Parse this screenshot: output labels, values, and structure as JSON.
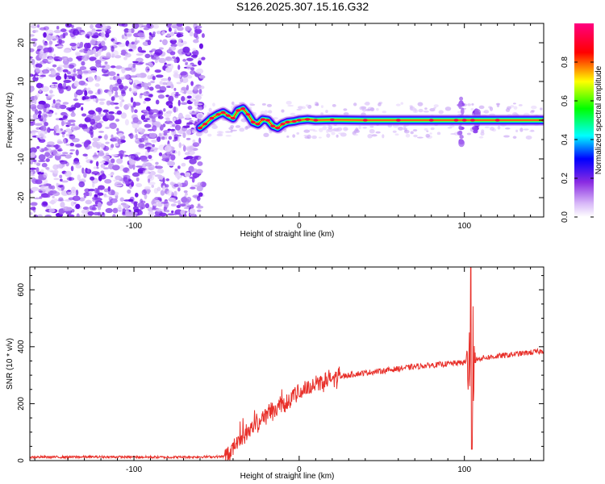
{
  "title": "S126.2025.307.15.16.G32",
  "chart_data": [
    {
      "type": "heatmap",
      "xlabel": "Height of straight line (km)",
      "ylabel": "Frequency (Hz)",
      "xlim": [
        -163,
        148
      ],
      "ylim": [
        -25,
        25
      ],
      "xticks": [
        -100,
        0,
        100
      ],
      "yticks": [
        -20,
        -10,
        0,
        10,
        20
      ],
      "noise_region_x": [
        -163,
        -60
      ],
      "signal_line": {
        "description": "narrow band near 0 Hz",
        "points": [
          [
            -60,
            -2
          ],
          [
            -57,
            -1
          ],
          [
            -53,
            0.5
          ],
          [
            -49,
            1.5
          ],
          [
            -46,
            2
          ],
          [
            -43,
            1.2
          ],
          [
            -40,
            0.5
          ],
          [
            -37,
            2.5
          ],
          [
            -34,
            3
          ],
          [
            -31,
            1.5
          ],
          [
            -28,
            -0.5
          ],
          [
            -25,
            -1
          ],
          [
            -22,
            0.2
          ],
          [
            -19,
            0
          ],
          [
            -16,
            -1.5
          ],
          [
            -13,
            -2
          ],
          [
            -10,
            -1
          ],
          [
            -7,
            -0.5
          ],
          [
            -3,
            -0.3
          ],
          [
            0,
            0
          ],
          [
            5,
            0.2
          ],
          [
            10,
            0
          ],
          [
            20,
            0.1
          ],
          [
            40,
            0
          ],
          [
            60,
            0
          ],
          [
            80,
            0
          ],
          [
            95,
            0
          ],
          [
            100,
            0
          ],
          [
            105,
            0
          ],
          [
            120,
            0
          ],
          [
            148,
            0
          ]
        ]
      },
      "spikes": [
        {
          "x": 98,
          "fmin": -6,
          "fmax": 6
        },
        {
          "x": 107,
          "fmin": -3,
          "fmax": 3
        }
      ],
      "colorbar": {
        "label": "Normalized spectral amplitude",
        "ticks": [
          0.0,
          0.2,
          0.4,
          0.6,
          0.8
        ],
        "range": [
          0,
          1
        ],
        "colors": [
          "#ffffff",
          "#8a2be2",
          "#0000ff",
          "#00ffff",
          "#00ff00",
          "#ffff00",
          "#ff0000",
          "#ff0080"
        ]
      }
    },
    {
      "type": "line",
      "xlabel": "Height of straight line (km)",
      "ylabel": "SNR (10 * v/v)",
      "xlim": [
        -163,
        148
      ],
      "ylim": [
        0,
        680
      ],
      "xticks": [
        -100,
        0,
        100
      ],
      "yticks": [
        0,
        200,
        400,
        600
      ],
      "series": [
        {
          "name": "SNR",
          "color": "#e8302a",
          "control_points": [
            [
              -163,
              12
            ],
            [
              -120,
              13
            ],
            [
              -80,
              12
            ],
            [
              -45,
              14
            ],
            [
              -40,
              40
            ],
            [
              -35,
              80
            ],
            [
              -30,
              110
            ],
            [
              -20,
              160
            ],
            [
              -10,
              200
            ],
            [
              0,
              240
            ],
            [
              10,
              270
            ],
            [
              20,
              290
            ],
            [
              35,
              305
            ],
            [
              50,
              315
            ],
            [
              70,
              330
            ],
            [
              90,
              340
            ],
            [
              100,
              345
            ],
            [
              110,
              360
            ],
            [
              125,
              370
            ],
            [
              148,
              385
            ]
          ],
          "spike": {
            "x": 104,
            "max": 680,
            "min": 40
          }
        }
      ]
    }
  ]
}
